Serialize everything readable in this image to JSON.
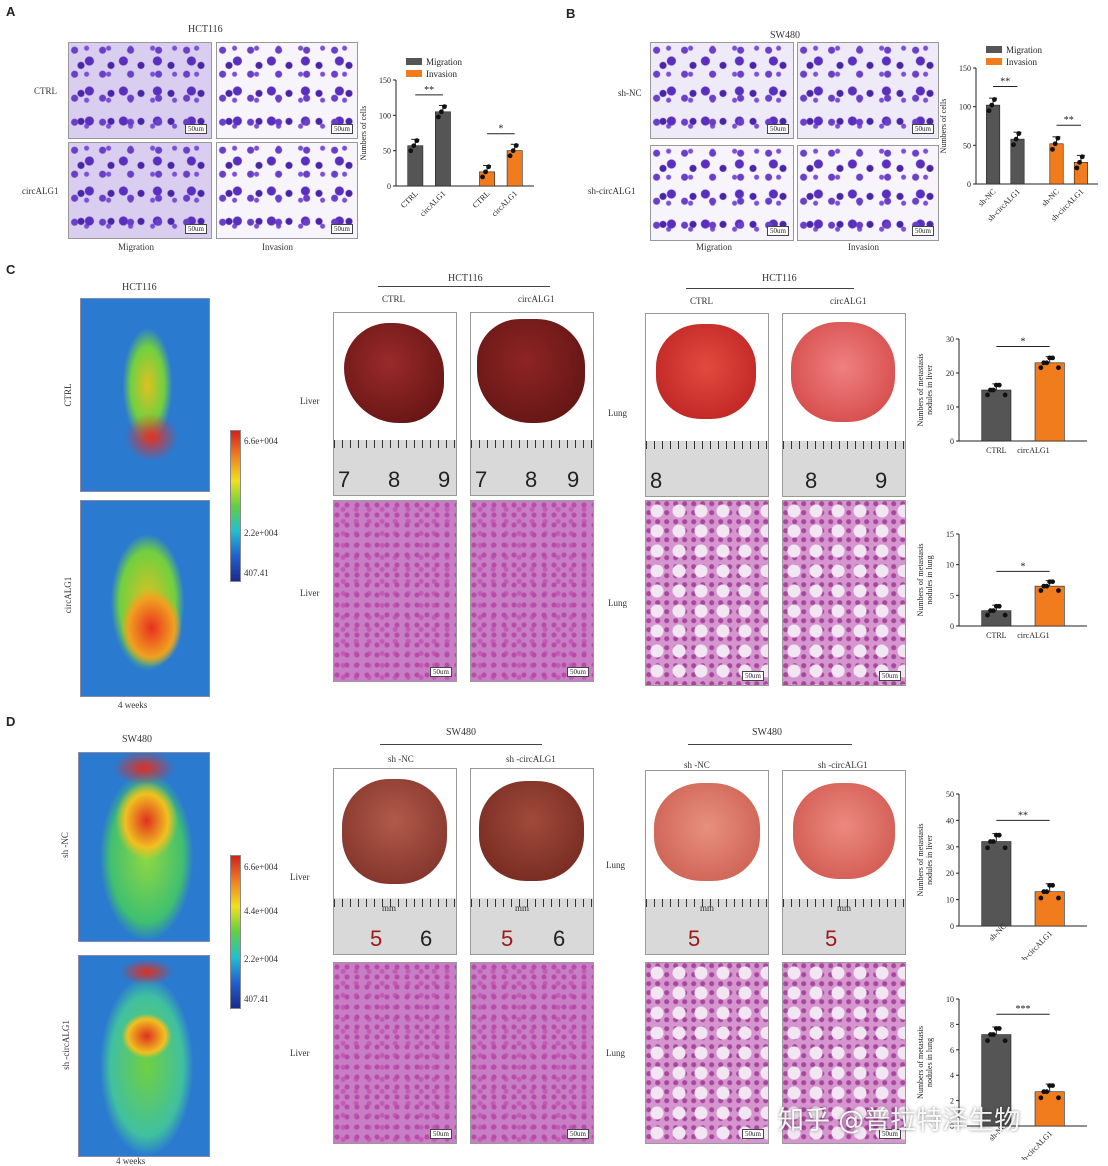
{
  "panels": {
    "a": "A",
    "b": "B",
    "c": "C",
    "d": "D"
  },
  "panel_a": {
    "title": "HCT116",
    "rows": [
      "CTRL",
      "circALG1"
    ],
    "cols": [
      "Migration",
      "Invasion"
    ],
    "scale": "50um"
  },
  "panel_b": {
    "title": "SW480",
    "rows": [
      "sh-NC",
      "sh-circALG1"
    ],
    "cols": [
      "Migration",
      "Invasion"
    ],
    "scale": "50um"
  },
  "panel_c": {
    "title": "HCT116",
    "mouse_rows": [
      "CTRL",
      "circALG1"
    ],
    "weeks": "4  weeks",
    "cbar": [
      "6.6e+004",
      "2.2e+004",
      "407.41"
    ],
    "liver_header": "HCT116",
    "lung_header": "HCT116",
    "groups": [
      "CTRL",
      "circALG1"
    ],
    "row_labels": {
      "liver": "Liver",
      "liver_he": "Liver",
      "lung": "Lung",
      "lung_he": "Lung"
    },
    "ruler_liver": [
      "7",
      "8",
      "9"
    ],
    "ruler_lung": [
      "8",
      "9"
    ]
  },
  "panel_d": {
    "title": "SW480",
    "mouse_rows": [
      "sh -NC",
      "sh -circALG1"
    ],
    "weeks": "4  weeks",
    "cbar": [
      "6.6e+004",
      "4.4e+004",
      "2.2e+004",
      "407.41"
    ],
    "liver_header": "SW480",
    "lung_header": "SW480",
    "groups": [
      "sh -NC",
      "sh -circALG1"
    ],
    "row_labels": {
      "liver": "Liver",
      "liver_he": "Liver",
      "lung": "Lung",
      "lung_he": "Lung"
    },
    "ruler_liver": [
      "5",
      "6"
    ],
    "ruler_lung": [
      "5"
    ],
    "ruler_unit": "mm"
  },
  "watermark": "知乎 @普拉特泽生物",
  "colors": {
    "gray": "#555555",
    "orange": "#f07c1e"
  },
  "chart_data": [
    {
      "type": "bar",
      "id": "A",
      "categories": [
        "CTRL",
        "circALG1",
        "CTRL",
        "circALG1"
      ],
      "series": [
        {
          "name": "Migration",
          "values": [
            57,
            105,
            null,
            null
          ]
        },
        {
          "name": "Invasion",
          "values": [
            null,
            null,
            20,
            50
          ]
        }
      ],
      "ylabel": "Numbers of cells",
      "ylim": [
        0,
        150
      ],
      "yticks": [
        0,
        50,
        100,
        150
      ],
      "legend": [
        "Migration",
        "Invasion"
      ],
      "sig": [
        "**",
        "*"
      ]
    },
    {
      "type": "bar",
      "id": "B",
      "categories": [
        "sh-NC",
        "sh-circALG1",
        "sh-NC",
        "sh-circALG1"
      ],
      "series": [
        {
          "name": "Migration",
          "values": [
            102,
            58,
            null,
            null
          ]
        },
        {
          "name": "Invasion",
          "values": [
            null,
            null,
            52,
            28
          ]
        }
      ],
      "ylabel": "Numbers of cells",
      "ylim": [
        0,
        150
      ],
      "yticks": [
        0,
        50,
        100,
        150
      ],
      "legend": [
        "Migration",
        "Invasion"
      ],
      "sig": [
        "**",
        "**"
      ]
    },
    {
      "type": "bar",
      "id": "C1",
      "categories": [
        "CTRL",
        "circALG1"
      ],
      "values": [
        15,
        23
      ],
      "ylabel": "Numbers of metastasis nodules in liver",
      "ylim": [
        0,
        30
      ],
      "yticks": [
        0,
        10,
        20,
        30
      ],
      "sig": [
        "*"
      ]
    },
    {
      "type": "bar",
      "id": "C2",
      "categories": [
        "CTRL",
        "circALG1"
      ],
      "values": [
        2.5,
        6.5
      ],
      "ylabel": "Numbers of metastasis nodules in lung",
      "ylim": [
        0,
        15
      ],
      "yticks": [
        0,
        5,
        10,
        15
      ],
      "sig": [
        "*"
      ]
    },
    {
      "type": "bar",
      "id": "D1",
      "categories": [
        "sh-NC",
        "sh-circALG1"
      ],
      "values": [
        32,
        13
      ],
      "ylabel": "Numbers of metastasis nodules in liver",
      "ylim": [
        0,
        50
      ],
      "yticks": [
        0,
        10,
        20,
        30,
        40,
        50
      ],
      "sig": [
        "**"
      ]
    },
    {
      "type": "bar",
      "id": "D2",
      "categories": [
        "sh-NC",
        "sh-circALG1"
      ],
      "values": [
        7.2,
        2.7
      ],
      "ylabel": "Numbers of metastasis nodules in lung",
      "ylim": [
        0,
        10
      ],
      "yticks": [
        0,
        2,
        4,
        6,
        8,
        10
      ],
      "sig": [
        "***"
      ]
    }
  ]
}
